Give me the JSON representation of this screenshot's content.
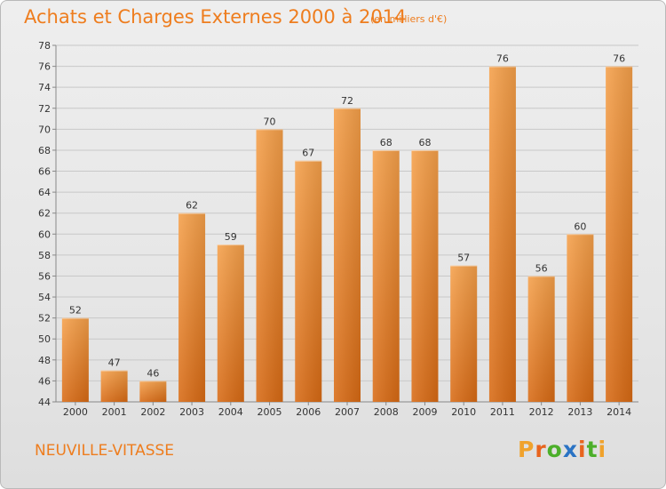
{
  "header": {
    "title": "Achats et Charges Externes 2000 à 2014",
    "subtitle": "(en milliers d'€)"
  },
  "footer": {
    "commune": "NEUVILLE-VITASSE",
    "logo_letters": [
      "P",
      "r",
      "o",
      "x",
      "i",
      "t",
      "i"
    ],
    "logo_colors": [
      "#f0a22c",
      "#e8641e",
      "#4caf2a",
      "#2a73c4",
      "#e8641e",
      "#4caf2a",
      "#f0a22c"
    ]
  },
  "colors": {
    "bar_light": "#f5a04a",
    "bar_dark": "#d86a14",
    "title": "#ee7d1e",
    "grid": "#c8c8c8",
    "text": "#333333"
  },
  "chart_data": {
    "type": "bar",
    "title": "Achats et Charges Externes 2000 à 2014",
    "subtitle": "(en milliers d'€)",
    "categories": [
      "2000",
      "2001",
      "2002",
      "2003",
      "2004",
      "2005",
      "2006",
      "2007",
      "2008",
      "2009",
      "2010",
      "2011",
      "2012",
      "2013",
      "2014"
    ],
    "values": [
      52,
      47,
      46,
      62,
      59,
      70,
      67,
      72,
      68,
      68,
      57,
      76,
      56,
      60,
      76
    ],
    "ylim": [
      44,
      78
    ],
    "yticks": [
      44,
      46,
      48,
      50,
      52,
      54,
      56,
      58,
      60,
      62,
      64,
      66,
      68,
      70,
      72,
      74,
      76,
      78
    ],
    "grid": true,
    "legend": "none"
  }
}
